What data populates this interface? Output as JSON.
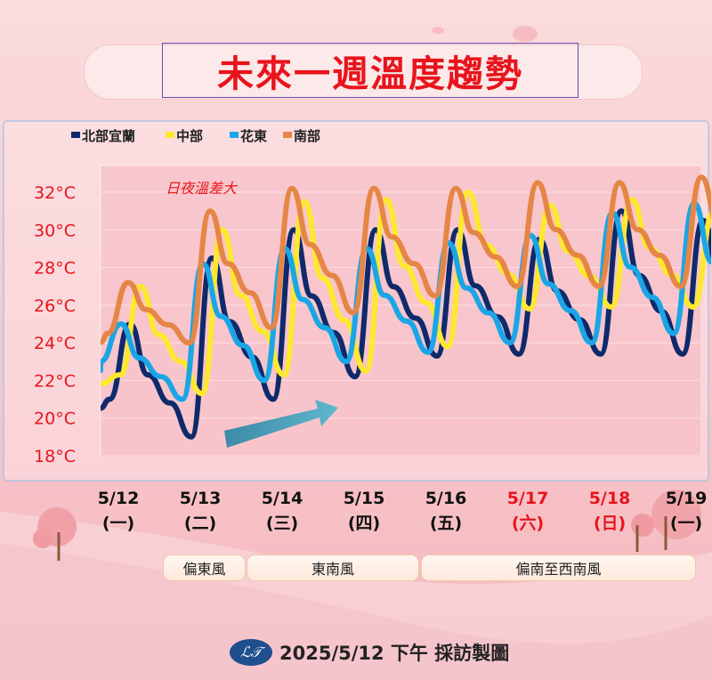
{
  "title": "未來一週溫度趨勢",
  "annotation": "日夜溫差大",
  "wind": [
    {
      "label": "偏東風"
    },
    {
      "label": "東南風"
    },
    {
      "label": "偏南至西南風"
    }
  ],
  "footer": {
    "logo": "ℒ𝒯",
    "text": "2025/5/12 下午 採訪製圖"
  },
  "colors": {
    "north": "#0f2a6b",
    "central": "#ffe82e",
    "hualien": "#1aa6e6",
    "south": "#e58646",
    "weekend": "#e8141c"
  },
  "chart_data": {
    "type": "line",
    "yticks": [
      "32°C",
      "30°C",
      "28°C",
      "26°C",
      "24°C",
      "22°C",
      "20°C",
      "18°C"
    ],
    "ylim": [
      18,
      32
    ],
    "grid": true,
    "legend_position": "top-left",
    "days": [
      {
        "date": "5/12",
        "weekday": "(一)",
        "weekend": false
      },
      {
        "date": "5/13",
        "weekday": "(二)",
        "weekend": false
      },
      {
        "date": "5/14",
        "weekday": "(三)",
        "weekend": false
      },
      {
        "date": "5/15",
        "weekday": "(四)",
        "weekend": false
      },
      {
        "date": "5/16",
        "weekday": "(五)",
        "weekend": false
      },
      {
        "date": "5/17",
        "weekday": "(六)",
        "weekend": true
      },
      {
        "date": "5/18",
        "weekday": "(日)",
        "weekend": true
      },
      {
        "date": "5/19",
        "weekday": "(一)",
        "weekend": false
      }
    ],
    "series": [
      {
        "name": "北部宜蘭",
        "color": "#0f2a6b",
        "lows": [
          21,
          19,
          21,
          22.2,
          23.3,
          23.4,
          23.4,
          23.4
        ],
        "highs": [
          25,
          28.5,
          30,
          30,
          30,
          29.5,
          31,
          30.5
        ]
      },
      {
        "name": "中部",
        "color": "#ffe82e",
        "lows": [
          22.3,
          21.3,
          22.3,
          22.5,
          23.8,
          25.8,
          25.9,
          25.9
        ],
        "highs": [
          27,
          30,
          31.5,
          31.6,
          32,
          31.3,
          31.6,
          31
        ]
      },
      {
        "name": "花東",
        "color": "#1aa6e6",
        "lows": [
          23,
          21,
          22,
          23,
          23.5,
          24,
          24,
          24.5
        ],
        "highs": [
          25,
          28.2,
          29,
          29,
          29.3,
          29.7,
          30.9,
          31.4
        ]
      },
      {
        "name": "南部",
        "color": "#e58646",
        "lows": [
          24.5,
          24,
          24.8,
          25.6,
          26.5,
          27,
          27,
          27
        ],
        "highs": [
          27.2,
          31,
          32.2,
          32.2,
          32.2,
          32.5,
          32.5,
          32.8
        ]
      }
    ]
  }
}
